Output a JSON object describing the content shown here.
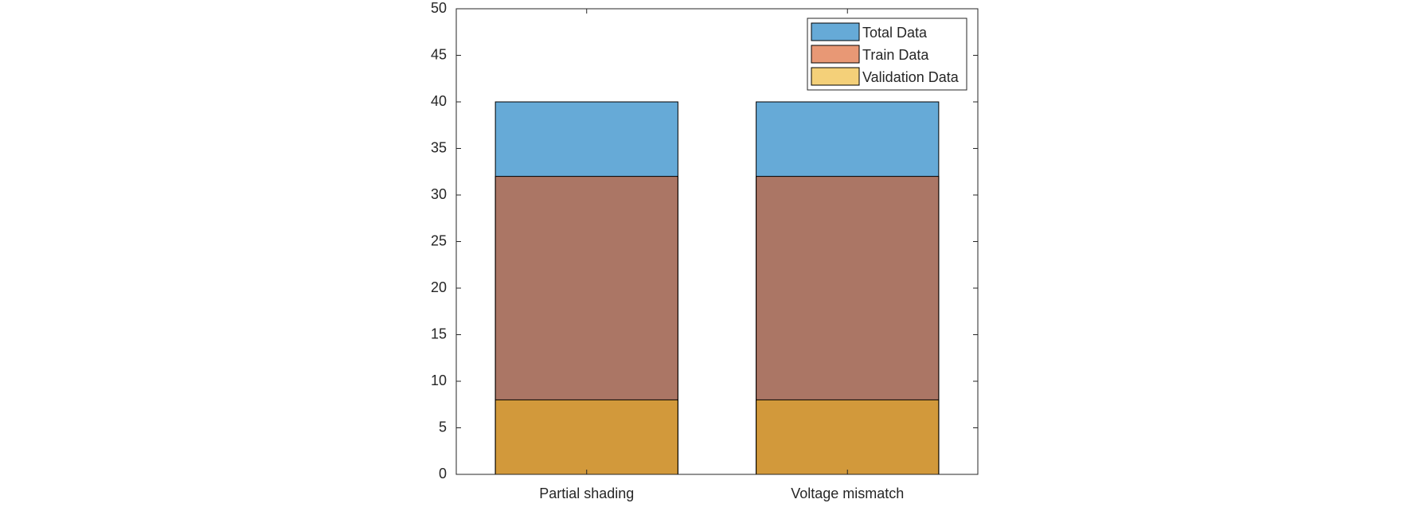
{
  "chart_data": {
    "type": "bar",
    "barmode": "overlay",
    "categories": [
      "Partial shading",
      "Voltage mismatch"
    ],
    "series": [
      {
        "name": "Total Data",
        "color": "#0072bd",
        "values": [
          40,
          40
        ]
      },
      {
        "name": "Train Data",
        "color": "#d95319",
        "values": [
          32,
          32
        ]
      },
      {
        "name": "Validation Data",
        "color": "#edb120",
        "values": [
          8,
          8
        ]
      }
    ],
    "ylim": [
      0,
      50
    ],
    "yticks": [
      0,
      5,
      10,
      15,
      20,
      25,
      30,
      35,
      40,
      45,
      50
    ],
    "grid": false,
    "legend": "upper right"
  }
}
